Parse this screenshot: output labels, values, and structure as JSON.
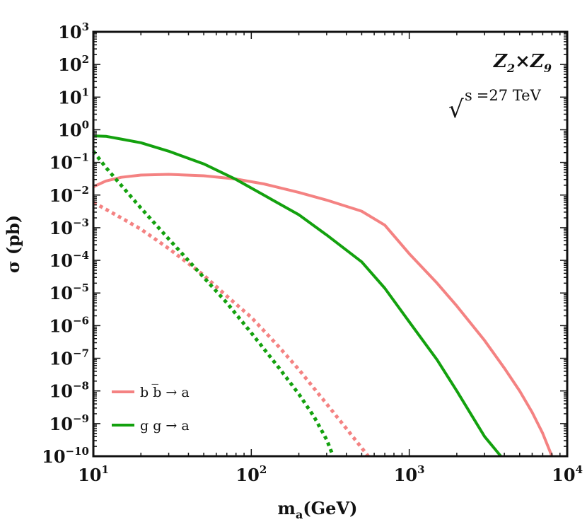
{
  "chart_data": {
    "type": "line",
    "title": "",
    "xlabel": {
      "main": "m",
      "sub": "a",
      "rest": "(GeV)"
    },
    "ylabel": "σ (pb)",
    "xscale": "log",
    "yscale": "log",
    "xlim": [
      10,
      10000
    ],
    "ylim": [
      1e-10,
      1000
    ],
    "x_ticks": [
      {
        "base": "10",
        "exp": "1",
        "value": 10
      },
      {
        "base": "10",
        "exp": "2",
        "value": 100
      },
      {
        "base": "10",
        "exp": "3",
        "value": 1000
      },
      {
        "base": "10",
        "exp": "4",
        "value": 10000
      }
    ],
    "y_ticks": [
      {
        "base": "10",
        "exp": "3",
        "value": 1000
      },
      {
        "base": "10",
        "exp": "2",
        "value": 100
      },
      {
        "base": "10",
        "exp": "1",
        "value": 10
      },
      {
        "base": "10",
        "exp": "0",
        "value": 1
      },
      {
        "base": "10",
        "exp": "−1",
        "value": 0.1
      },
      {
        "base": "10",
        "exp": "−2",
        "value": 0.01
      },
      {
        "base": "10",
        "exp": "−3",
        "value": 0.001
      },
      {
        "base": "10",
        "exp": "−4",
        "value": 0.0001
      },
      {
        "base": "10",
        "exp": "−5",
        "value": 1e-05
      },
      {
        "base": "10",
        "exp": "−6",
        "value": 1e-06
      },
      {
        "base": "10",
        "exp": "−7",
        "value": 1e-07
      },
      {
        "base": "10",
        "exp": "−8",
        "value": 1e-08
      },
      {
        "base": "10",
        "exp": "−9",
        "value": 1e-09
      },
      {
        "base": "10",
        "exp": "−10",
        "value": 1e-10
      }
    ],
    "annotations": {
      "model": {
        "z1": "Z",
        "s1": "2",
        "times": "×",
        "z2": "Z",
        "s2": "9"
      },
      "energy": {
        "sqrt": "√",
        "s": "s",
        "value": "=27 TeV"
      }
    },
    "legend": {
      "placement": "bottom-left",
      "entries": [
        {
          "label": "b b̅ → a",
          "color": "#f48282"
        },
        {
          "label": "g g → a",
          "color": "#13a10e"
        }
      ]
    },
    "series": [
      {
        "name": "b b̅ → a (solid)",
        "color": "#f48282",
        "style": "solid",
        "points": [
          [
            10,
            0.018
          ],
          [
            12,
            0.027
          ],
          [
            15,
            0.035
          ],
          [
            20,
            0.041
          ],
          [
            30,
            0.043
          ],
          [
            50,
            0.039
          ],
          [
            80,
            0.031
          ],
          [
            120,
            0.022
          ],
          [
            200,
            0.012
          ],
          [
            300,
            0.007
          ],
          [
            500,
            0.0032
          ],
          [
            700,
            0.0012
          ],
          [
            1000,
            0.00016
          ],
          [
            1500,
            2e-05
          ],
          [
            2000,
            4e-06
          ],
          [
            3000,
            3.5e-07
          ],
          [
            4000,
            5e-08
          ],
          [
            5000,
            1e-08
          ],
          [
            6000,
            2.2e-09
          ],
          [
            7000,
            5e-10
          ],
          [
            8000,
            1e-10
          ]
        ]
      },
      {
        "name": "g g → a (solid)",
        "color": "#13a10e",
        "style": "solid",
        "points": [
          [
            10,
            0.65
          ],
          [
            12,
            0.63
          ],
          [
            15,
            0.52
          ],
          [
            20,
            0.4
          ],
          [
            30,
            0.22
          ],
          [
            50,
            0.09
          ],
          [
            80,
            0.03
          ],
          [
            120,
            0.01
          ],
          [
            200,
            0.0025
          ],
          [
            300,
            0.0006
          ],
          [
            500,
            9e-05
          ],
          [
            700,
            1.4e-05
          ],
          [
            1000,
            1.3e-06
          ],
          [
            1500,
            9e-08
          ],
          [
            2000,
            1e-08
          ],
          [
            2500,
            1.7e-09
          ],
          [
            3000,
            4e-10
          ],
          [
            3800,
            1e-10
          ]
        ]
      },
      {
        "name": "b b̅ → a (dotted)",
        "color": "#f48282",
        "style": "dotted",
        "points": [
          [
            10,
            0.006
          ],
          [
            15,
            0.002
          ],
          [
            20,
            0.0009
          ],
          [
            30,
            0.00023
          ],
          [
            50,
            3.5e-05
          ],
          [
            70,
            8e-06
          ],
          [
            100,
            1.8e-06
          ],
          [
            150,
            2.2e-07
          ],
          [
            200,
            4.5e-08
          ],
          [
            300,
            4e-09
          ],
          [
            400,
            7e-10
          ],
          [
            500,
            1.8e-10
          ],
          [
            550,
            1e-10
          ]
        ]
      },
      {
        "name": "g g → a (dotted)",
        "color": "#13a10e",
        "style": "dotted",
        "points": [
          [
            10,
            0.22
          ],
          [
            12,
            0.07
          ],
          [
            15,
            0.02
          ],
          [
            20,
            0.004
          ],
          [
            30,
            0.00045
          ],
          [
            50,
            3e-05
          ],
          [
            70,
            5e-06
          ],
          [
            100,
            6e-07
          ],
          [
            150,
            5e-08
          ],
          [
            200,
            8e-09
          ],
          [
            250,
            1.6e-09
          ],
          [
            300,
            3.2e-10
          ],
          [
            330,
            1e-10
          ]
        ]
      }
    ]
  }
}
